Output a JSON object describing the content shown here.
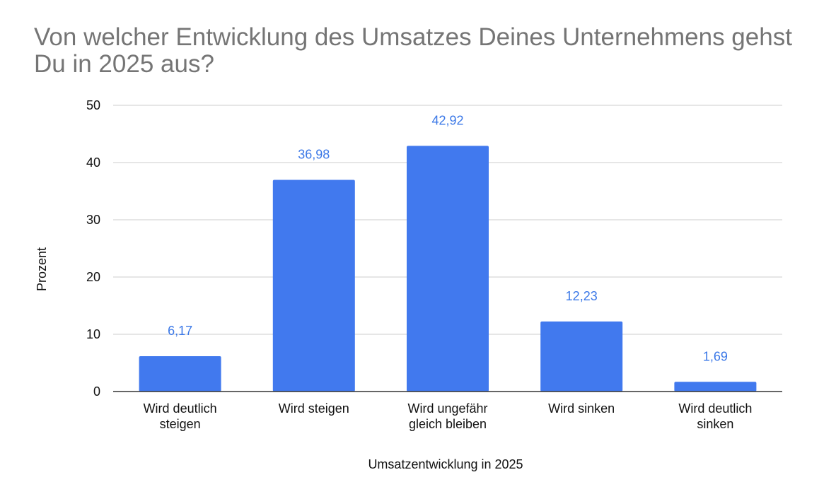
{
  "chart_data": {
    "type": "bar",
    "title": "Von welcher Entwicklung des Umsatzes Deines Unternehmens gehst Du in 2025 aus?",
    "xlabel": "Umsatzentwicklung in 2025",
    "ylabel": "Prozent",
    "categories": [
      [
        "Wird deutlich",
        "steigen"
      ],
      [
        "Wird steigen"
      ],
      [
        "Wird ungefähr",
        "gleich bleiben"
      ],
      [
        "Wird sinken"
      ],
      [
        "Wird deutlich",
        "sinken"
      ]
    ],
    "values": [
      6.17,
      36.98,
      42.92,
      12.23,
      1.69
    ],
    "data_labels": [
      "6,17",
      "36,98",
      "42,92",
      "12,23",
      "1,69"
    ],
    "ylim": [
      0,
      50
    ],
    "yticks": [
      0,
      10,
      20,
      30,
      40,
      50
    ],
    "grid": true,
    "legend": "none",
    "bar_color": "#4179ee",
    "label_color": "#3b78e7"
  }
}
